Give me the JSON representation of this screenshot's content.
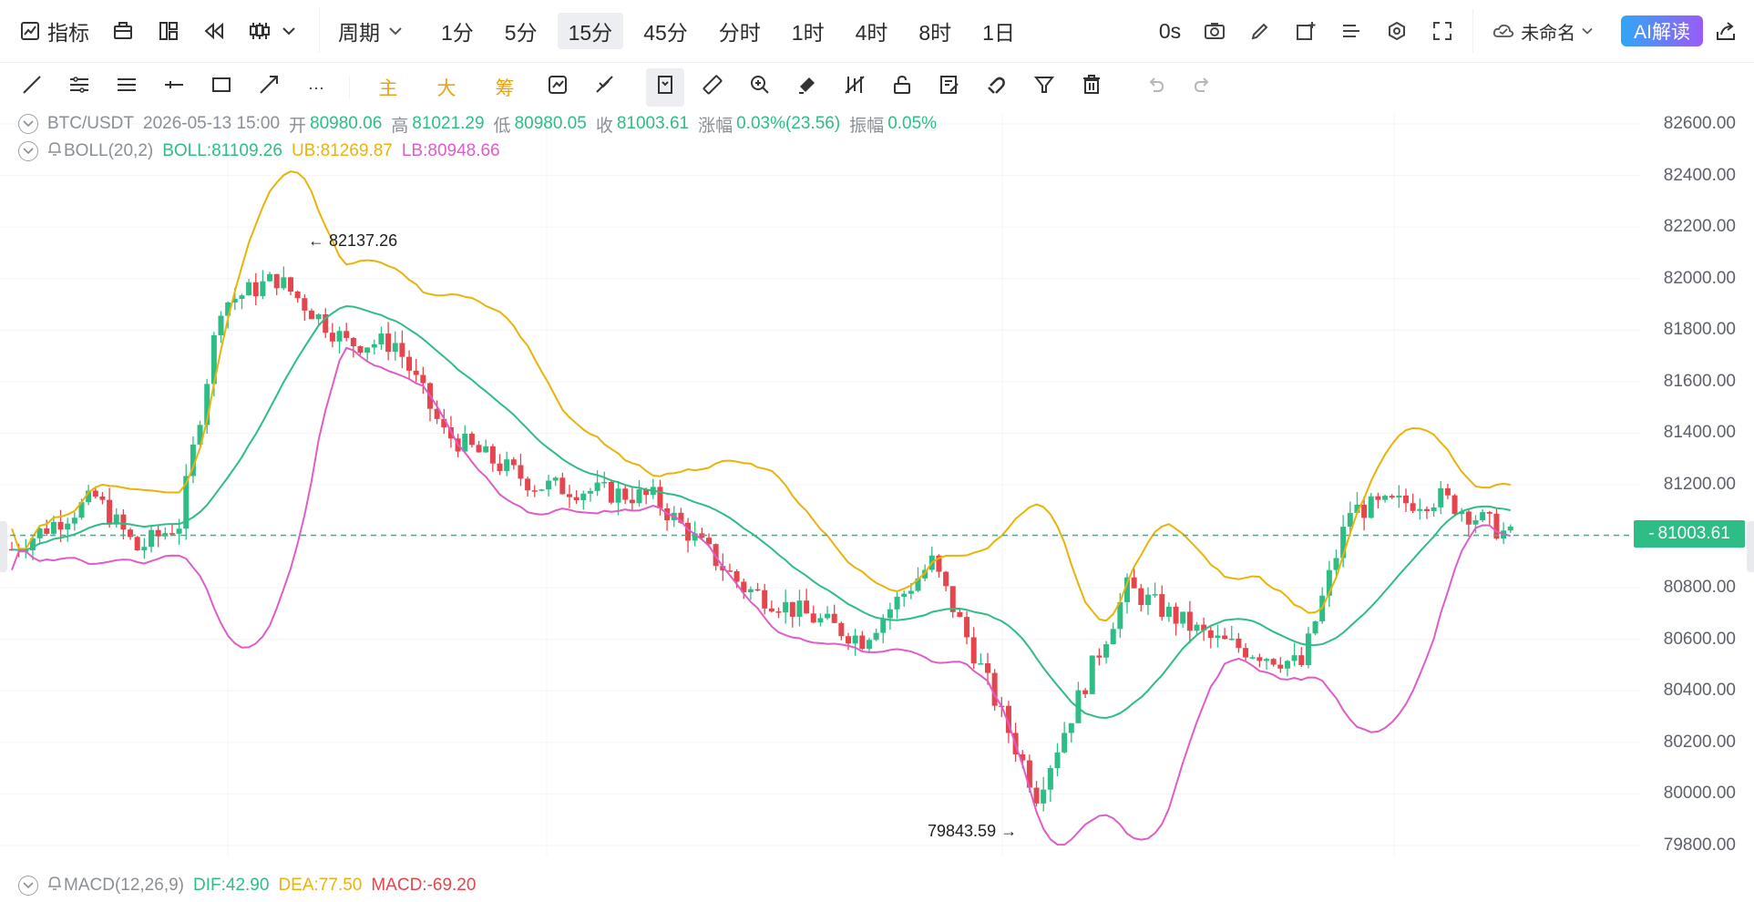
{
  "toolbar": {
    "indicator_label": "指标",
    "period_label": "周期",
    "intervals": [
      "1分",
      "5分",
      "15分",
      "45分",
      "分时",
      "1时",
      "4时",
      "8时",
      "1日"
    ],
    "active_interval": "15分",
    "countdown": "0s",
    "layout_name": "未命名",
    "ai_label": "AI解读"
  },
  "drawbar": {
    "ellipsis": "···",
    "main_label": "主",
    "big_label": "大",
    "chip_label": "筹"
  },
  "ohlc": {
    "symbol": "BTC/USDT",
    "datetime": "2026-05-13 15:00",
    "open_label": "开",
    "open": "80980.06",
    "high_label": "高",
    "high": "81021.29",
    "low_label": "低",
    "low": "80980.05",
    "close_label": "收",
    "close": "81003.61",
    "change_label": "涨幅",
    "change": "0.03%(23.56)",
    "amp_label": "振幅",
    "amp": "0.05%"
  },
  "boll": {
    "name": "BOLL(20,2)",
    "mid": "BOLL:81109.26",
    "ub": "UB:81269.87",
    "lb": "LB:80948.66"
  },
  "macd": {
    "name": "MACD(12,26,9)",
    "dif": "DIF:42.90",
    "dea": "DEA:77.50",
    "macd": "MACD:-69.20"
  },
  "chart_data": {
    "type": "candlestick",
    "price_ticks": [
      "82600.00",
      "82400.00",
      "82200.00",
      "82000.00",
      "81800.00",
      "81600.00",
      "81400.00",
      "81200.00",
      "81000.00",
      "80800.00",
      "80600.00",
      "80400.00",
      "80200.00",
      "80000.00",
      "79800.00"
    ],
    "ylim": [
      79760,
      82640
    ],
    "current_price": "81003.61",
    "max_label": "82137.26",
    "min_label": "79843.59",
    "colors": {
      "up": "#2ebd85",
      "down": "#e5454c",
      "ub": "#eab308",
      "mid": "#2ebd85",
      "lb": "#e05cc8"
    }
  }
}
